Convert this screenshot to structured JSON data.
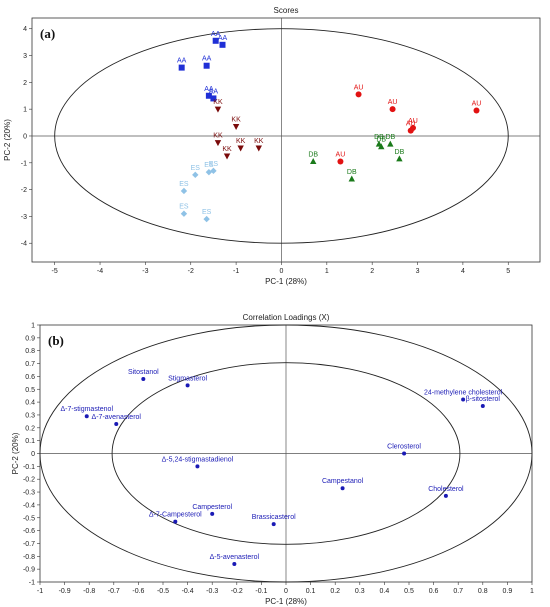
{
  "chart_data": [
    {
      "panel": "(a)",
      "type": "scatter",
      "title": "Scores",
      "xlabel": "PC-1 (28%)",
      "ylabel": "PC-2 (20%)",
      "xlim": [
        -5.5,
        5.7
      ],
      "ylim": [
        -4.7,
        4.4
      ],
      "xticks": [
        -5,
        -4,
        -3,
        -2,
        -1,
        0,
        1,
        2,
        3,
        4,
        5
      ],
      "yticks": [
        -4,
        -3,
        -2,
        -1,
        0,
        1,
        2,
        3,
        4
      ],
      "ellipse": {
        "center": [
          0,
          0
        ],
        "rx": 5,
        "ry": 4
      },
      "series": [
        {
          "name": "AA",
          "color": "#1f2fd6",
          "marker": "square",
          "points": [
            [
              -1.45,
              3.55
            ],
            [
              -1.3,
              3.4
            ],
            [
              -2.2,
              2.55
            ],
            [
              -1.65,
              2.62
            ],
            [
              -1.6,
              1.5
            ],
            [
              -1.5,
              1.4
            ]
          ]
        },
        {
          "name": "KK",
          "color": "#7a0a0a",
          "marker": "triangle-down",
          "points": [
            [
              -1.4,
              1.0
            ],
            [
              -1.0,
              0.35
            ],
            [
              -1.4,
              -0.25
            ],
            [
              -0.9,
              -0.45
            ],
            [
              -0.5,
              -0.45
            ],
            [
              -1.2,
              -0.75
            ]
          ]
        },
        {
          "name": "ES",
          "color": "#8fc2e6",
          "marker": "diamond",
          "points": [
            [
              -1.9,
              -1.45
            ],
            [
              -1.6,
              -1.35
            ],
            [
              -1.5,
              -1.3
            ],
            [
              -2.15,
              -2.05
            ],
            [
              -2.15,
              -2.9
            ],
            [
              -1.65,
              -3.1
            ]
          ]
        },
        {
          "name": "AU",
          "color": "#e21212",
          "marker": "circle",
          "points": [
            [
              1.7,
              1.55
            ],
            [
              2.45,
              1.0
            ],
            [
              2.9,
              0.3
            ],
            [
              2.85,
              0.2
            ],
            [
              4.3,
              0.95
            ],
            [
              1.3,
              -0.95
            ]
          ]
        },
        {
          "name": "DB",
          "color": "#1a7a1a",
          "marker": "triangle-up",
          "points": [
            [
              2.15,
              -0.3
            ],
            [
              2.2,
              -0.4
            ],
            [
              2.4,
              -0.3
            ],
            [
              0.7,
              -0.95
            ],
            [
              1.55,
              -1.6
            ],
            [
              2.6,
              -0.85
            ]
          ]
        }
      ]
    },
    {
      "panel": "(b)",
      "type": "scatter",
      "title": "Correlation Loadings (X)",
      "xlabel": "PC-1 (28%)",
      "ylabel": "PC-2 (20%)",
      "xlim": [
        -1.0,
        1.0
      ],
      "ylim": [
        -1.0,
        1.0
      ],
      "xticks": [
        -1,
        -0.9,
        -0.8,
        -0.7,
        -0.6,
        -0.5,
        -0.4,
        -0.3,
        -0.2,
        -0.1,
        0,
        0.1,
        0.2,
        0.3,
        0.4,
        0.5,
        0.6,
        0.7,
        0.8,
        0.9,
        1
      ],
      "yticks": [
        -1,
        -0.9,
        -0.8,
        -0.7,
        -0.6,
        -0.5,
        -0.4,
        -0.3,
        -0.2,
        -0.1,
        0,
        0.1,
        0.2,
        0.3,
        0.4,
        0.5,
        0.6,
        0.7,
        0.8,
        0.9,
        1
      ],
      "circles": [
        1.0,
        0.707
      ],
      "color": "#1a1ab5",
      "points": [
        {
          "label": "Sitostanol",
          "x": -0.58,
          "y": 0.58
        },
        {
          "label": "Stigmasterol",
          "x": -0.4,
          "y": 0.53
        },
        {
          "label": "Δ-7-stigmastenol",
          "x": -0.81,
          "y": 0.29
        },
        {
          "label": "Δ-7-avenasterol",
          "x": -0.69,
          "y": 0.23
        },
        {
          "label": "Δ-5,24-stigmastadienol",
          "x": -0.36,
          "y": -0.1
        },
        {
          "label": "Campesterol",
          "x": -0.3,
          "y": -0.47
        },
        {
          "label": "Δ-7-Campesterol",
          "x": -0.45,
          "y": -0.53
        },
        {
          "label": "Brassicasterol",
          "x": -0.05,
          "y": -0.55
        },
        {
          "label": "Δ-5-avenasterol",
          "x": -0.21,
          "y": -0.86
        },
        {
          "label": "Campestanol",
          "x": 0.23,
          "y": -0.27
        },
        {
          "label": "Clerosterol",
          "x": 0.48,
          "y": 0.0
        },
        {
          "label": "Cholesterol",
          "x": 0.65,
          "y": -0.33
        },
        {
          "label": "24-methylene cholesterol",
          "x": 0.72,
          "y": 0.42
        },
        {
          "label": "β-sitosterol",
          "x": 0.8,
          "y": 0.37
        }
      ]
    }
  ]
}
